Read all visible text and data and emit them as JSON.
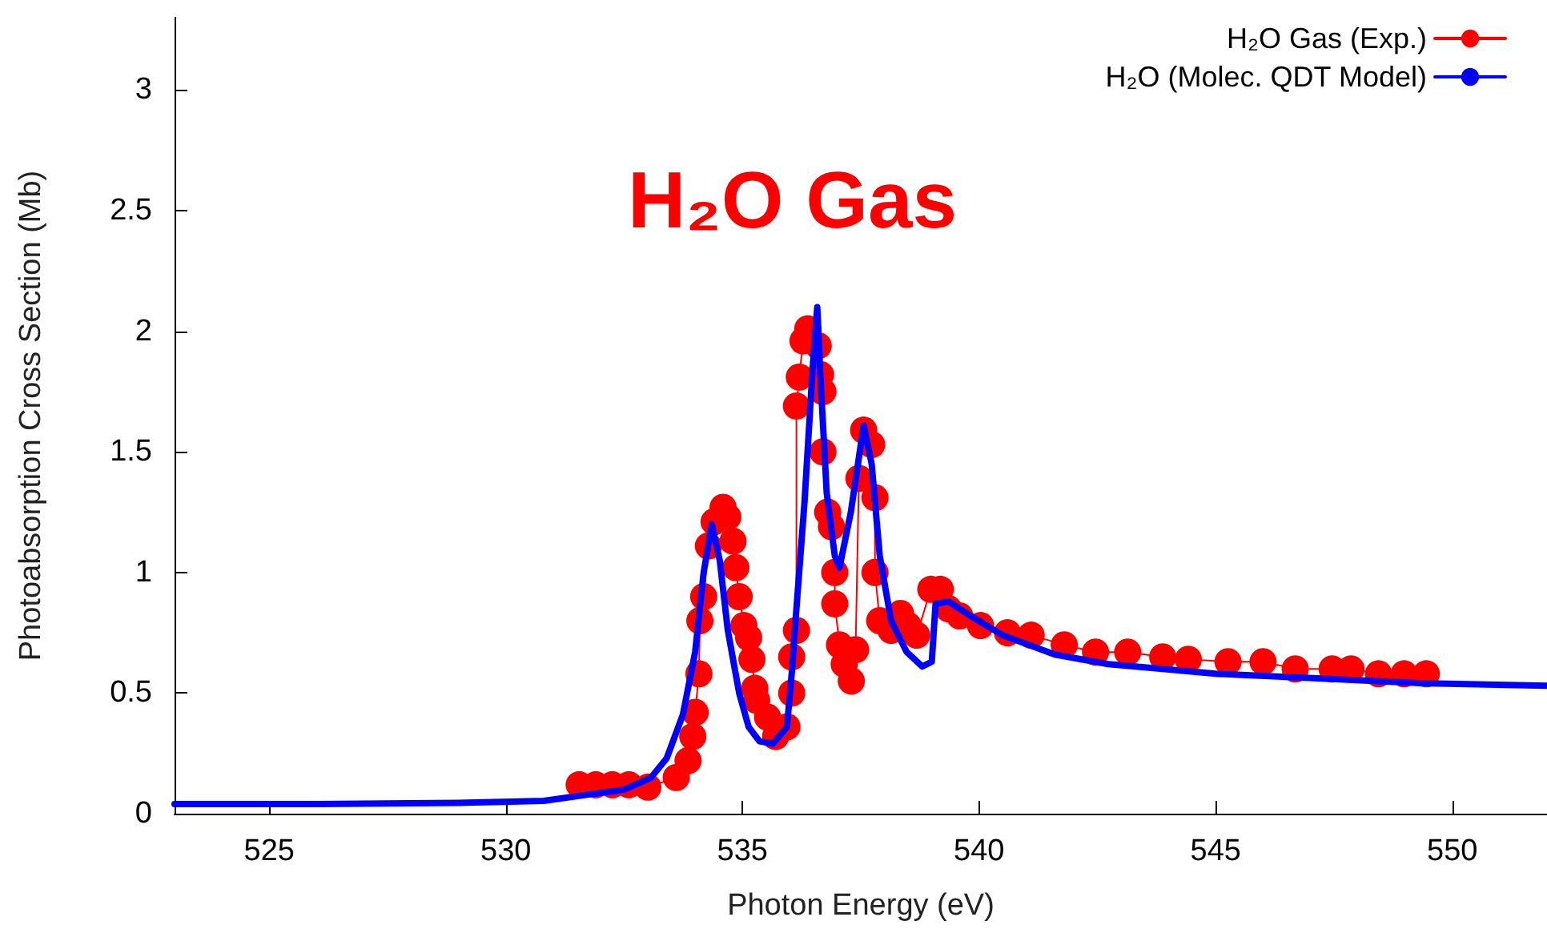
{
  "chart_data": {
    "type": "line",
    "xlabel": "Photon Energy (eV)",
    "ylabel": "Photoabsorption Cross Section (Mb)",
    "annotations": [
      "H₂O Gas"
    ],
    "xlim": [
      523,
      552
    ],
    "xticks": [
      525,
      530,
      535,
      540,
      545,
      550
    ],
    "ylim": [
      0,
      3.3
    ],
    "yticks": [
      0,
      0.5,
      1,
      1.5,
      2,
      2.5,
      3
    ],
    "grid": false,
    "legend": "top right",
    "series": [
      {
        "name": "H₂O Gas (Exp.)",
        "color": "#ff0000",
        "marker": "circle",
        "x": [
          531.55,
          531.9,
          532.25,
          532.6,
          533.0,
          533.6,
          533.85,
          533.95,
          534.0,
          534.08,
          534.1,
          534.18,
          534.28,
          534.4,
          534.59,
          534.69,
          534.8,
          534.86,
          534.93,
          535.03,
          535.13,
          535.2,
          535.26,
          535.3,
          535.53,
          535.7,
          535.94,
          536.04,
          536.04,
          536.14,
          536.14,
          536.2,
          536.28,
          536.38,
          536.6,
          536.65,
          536.7,
          536.7,
          536.8,
          536.88,
          536.95,
          536.95,
          537.05,
          537.15,
          537.3,
          537.39,
          537.46,
          537.56,
          537.73,
          537.8,
          537.8,
          537.9,
          538.14,
          538.34,
          538.5,
          538.68,
          538.98,
          539.18,
          539.35,
          539.59,
          540.03,
          540.6,
          541.1,
          541.8,
          542.46,
          543.14,
          543.88,
          544.42,
          545.26,
          546.0,
          546.68,
          547.46,
          547.86,
          548.44,
          548.98,
          549.45
        ],
        "values": [
          0.12,
          0.12,
          0.12,
          0.12,
          0.11,
          0.15,
          0.22,
          0.32,
          0.42,
          0.58,
          0.8,
          0.9,
          1.11,
          1.21,
          1.27,
          1.23,
          1.13,
          1.02,
          0.9,
          0.78,
          0.73,
          0.64,
          0.52,
          0.47,
          0.4,
          0.32,
          0.36,
          0.5,
          0.65,
          0.76,
          1.69,
          1.81,
          1.96,
          2.01,
          1.94,
          1.82,
          1.75,
          1.5,
          1.25,
          1.19,
          1.0,
          0.87,
          0.7,
          0.62,
          0.55,
          0.68,
          1.39,
          1.59,
          1.53,
          1.31,
          1.0,
          0.8,
          0.76,
          0.83,
          0.78,
          0.74,
          0.93,
          0.93,
          0.85,
          0.82,
          0.78,
          0.75,
          0.74,
          0.7,
          0.67,
          0.67,
          0.65,
          0.64,
          0.63,
          0.63,
          0.6,
          0.6,
          0.6,
          0.58,
          0.58,
          0.58
        ]
      },
      {
        "name": "H₂O (Molec. QDT Model)",
        "color": "#0000ff",
        "marker": "none",
        "x": [
          523,
          526,
          529,
          530.8,
          532.5,
          533.07,
          533.4,
          533.74,
          534.0,
          534.18,
          534.35,
          534.52,
          534.69,
          534.93,
          535.13,
          535.36,
          535.64,
          535.94,
          536.04,
          536.14,
          536.31,
          536.48,
          536.58,
          536.65,
          536.78,
          536.95,
          537.05,
          537.29,
          537.56,
          537.73,
          537.9,
          538.14,
          538.47,
          538.8,
          539.0,
          539.08,
          539.35,
          539.82,
          540.5,
          541.6,
          542.73,
          543.88,
          545.0,
          547.25,
          549.5,
          552
        ],
        "values": [
          0.04,
          0.04,
          0.045,
          0.053,
          0.1,
          0.15,
          0.23,
          0.41,
          0.67,
          1.0,
          1.2,
          1.05,
          0.76,
          0.5,
          0.36,
          0.3,
          0.29,
          0.36,
          0.58,
          0.85,
          1.29,
          1.84,
          2.1,
          1.8,
          1.33,
          1.07,
          1.02,
          1.25,
          1.61,
          1.45,
          1.07,
          0.8,
          0.67,
          0.61,
          0.63,
          0.87,
          0.88,
          0.82,
          0.74,
          0.66,
          0.62,
          0.6,
          0.58,
          0.56,
          0.54,
          0.53
        ]
      }
    ]
  }
}
